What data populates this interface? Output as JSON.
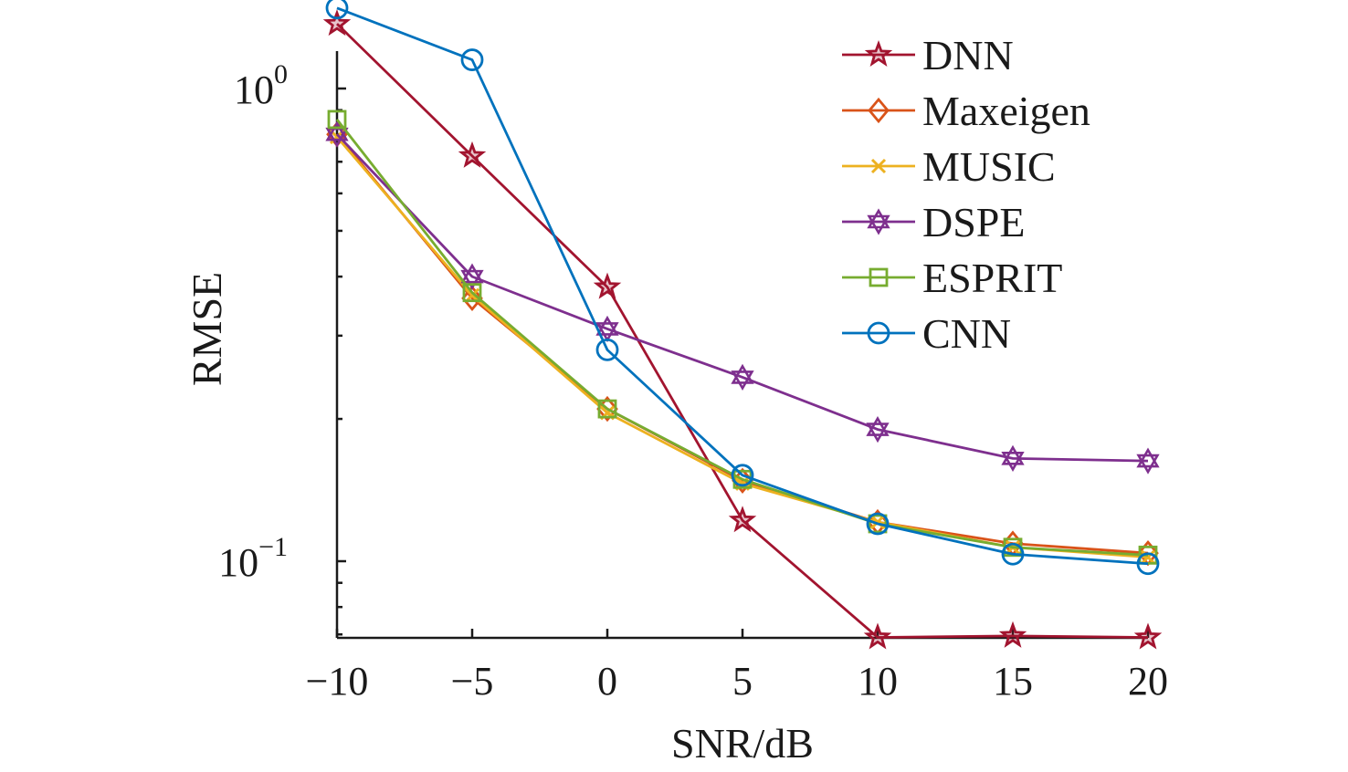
{
  "chart_data": {
    "type": "line",
    "title": "",
    "xlabel": "SNR/dB",
    "ylabel": "RMSE",
    "yscale": "log",
    "xlim": [
      -10,
      20
    ],
    "ylim": [
      0.069,
      1.2
    ],
    "grid": false,
    "legend_position": "top-right",
    "x": [
      -10,
      -5,
      0,
      5,
      10,
      15,
      20
    ],
    "x_tick_labels": [
      "−10",
      "−5",
      "0",
      "5",
      "10",
      "15",
      "20"
    ],
    "y_ticks": [
      {
        "value": 1,
        "base": "10",
        "exp": "0"
      },
      {
        "value": 0.1,
        "base": "10",
        "exp": "−1"
      }
    ],
    "series": [
      {
        "name": "DNN",
        "color": "#a2142f",
        "marker": "star",
        "values": [
          1.37,
          0.72,
          0.38,
          0.122,
          0.069,
          0.0695,
          0.069
        ]
      },
      {
        "name": "Maxeigen",
        "color": "#d95319",
        "marker": "diamond",
        "values": [
          0.8,
          0.36,
          0.21,
          0.148,
          0.121,
          0.109,
          0.104
        ]
      },
      {
        "name": "MUSIC",
        "color": "#edb120",
        "marker": "x",
        "values": [
          0.79,
          0.365,
          0.206,
          0.146,
          0.121,
          0.107,
          0.102
        ]
      },
      {
        "name": "DSPE",
        "color": "#7e2f8e",
        "marker": "hexagram",
        "values": [
          0.8,
          0.4,
          0.31,
          0.245,
          0.19,
          0.165,
          0.163
        ]
      },
      {
        "name": "ESPRIT",
        "color": "#77ac30",
        "marker": "square",
        "values": [
          0.86,
          0.37,
          0.21,
          0.149,
          0.12,
          0.107,
          0.103
        ]
      },
      {
        "name": "CNN",
        "color": "#0072bd",
        "marker": "circle",
        "values": [
          1.48,
          1.15,
          0.28,
          0.152,
          0.12,
          0.1035,
          0.0988
        ]
      }
    ]
  }
}
